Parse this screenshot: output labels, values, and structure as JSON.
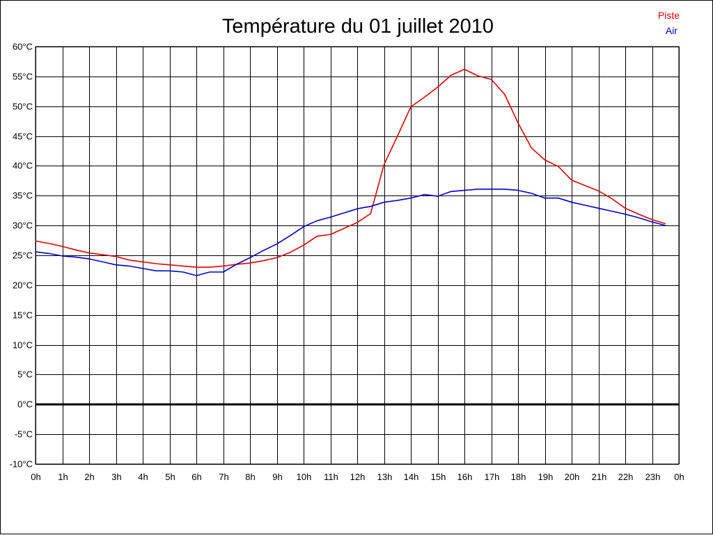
{
  "chart_data": {
    "type": "line",
    "title": "Température du 01 juillet 2010",
    "xlabel": "",
    "ylabel": "",
    "x_unit": "hour",
    "xlim": [
      0,
      24
    ],
    "ylim": [
      -10,
      60
    ],
    "grid": true,
    "legend_position": "top-right",
    "y_ticks": [
      "60°C",
      "55°C",
      "50°C",
      "45°C",
      "40°C",
      "35°C",
      "30°C",
      "25°C",
      "20°C",
      "15°C",
      "10°C",
      "5°C",
      "0°C",
      "-5°C",
      "-10°C"
    ],
    "x_ticks": [
      "0h",
      "1h",
      "2h",
      "3h",
      "4h",
      "5h",
      "6h",
      "7h",
      "8h",
      "9h",
      "10h",
      "11h",
      "12h",
      "13h",
      "14h",
      "15h",
      "16h",
      "17h",
      "18h",
      "19h",
      "20h",
      "21h",
      "22h",
      "23h",
      "0h"
    ],
    "x": [
      0,
      0.5,
      1,
      1.5,
      2,
      2.5,
      3,
      3.5,
      4,
      4.5,
      5,
      5.5,
      6,
      6.5,
      7,
      7.5,
      8,
      8.5,
      9,
      9.5,
      10,
      10.5,
      11,
      11.5,
      12,
      12.5,
      13,
      13.5,
      14,
      14.5,
      15,
      15.5,
      16,
      16.5,
      17,
      17.5,
      18,
      18.5,
      19,
      19.5,
      20,
      20.5,
      21,
      21.5,
      22,
      22.5,
      23,
      23.5
    ],
    "series": [
      {
        "name": "Piste",
        "color": "#e00000",
        "values": [
          27.4,
          27.0,
          26.5,
          25.9,
          25.4,
          25.1,
          24.8,
          24.2,
          23.9,
          23.6,
          23.4,
          23.2,
          23.0,
          23.0,
          23.2,
          23.5,
          23.7,
          24.1,
          24.6,
          25.5,
          26.7,
          28.2,
          28.5,
          29.5,
          30.5,
          32.0,
          40.2,
          45.0,
          49.9,
          51.5,
          53.2,
          55.2,
          56.2,
          55.1,
          54.5,
          52.0,
          47.2,
          43.0,
          41.0,
          39.9,
          37.6,
          36.7,
          35.8,
          34.5,
          32.9,
          31.9,
          31.0,
          30.3
        ]
      },
      {
        "name": "Air",
        "color": "#0000cc",
        "values": [
          25.6,
          25.3,
          24.9,
          24.7,
          24.4,
          23.9,
          23.4,
          23.2,
          22.8,
          22.4,
          22.4,
          22.2,
          21.6,
          22.2,
          22.2,
          23.5,
          24.6,
          25.8,
          26.9,
          28.3,
          29.8,
          30.8,
          31.4,
          32.1,
          32.8,
          33.2,
          33.9,
          34.2,
          34.6,
          35.2,
          34.9,
          35.7,
          35.9,
          36.1,
          36.1,
          36.1,
          35.9,
          35.4,
          34.6,
          34.6,
          33.9,
          33.4,
          32.9,
          32.4,
          31.9,
          31.3,
          30.6,
          30.0
        ]
      }
    ]
  }
}
